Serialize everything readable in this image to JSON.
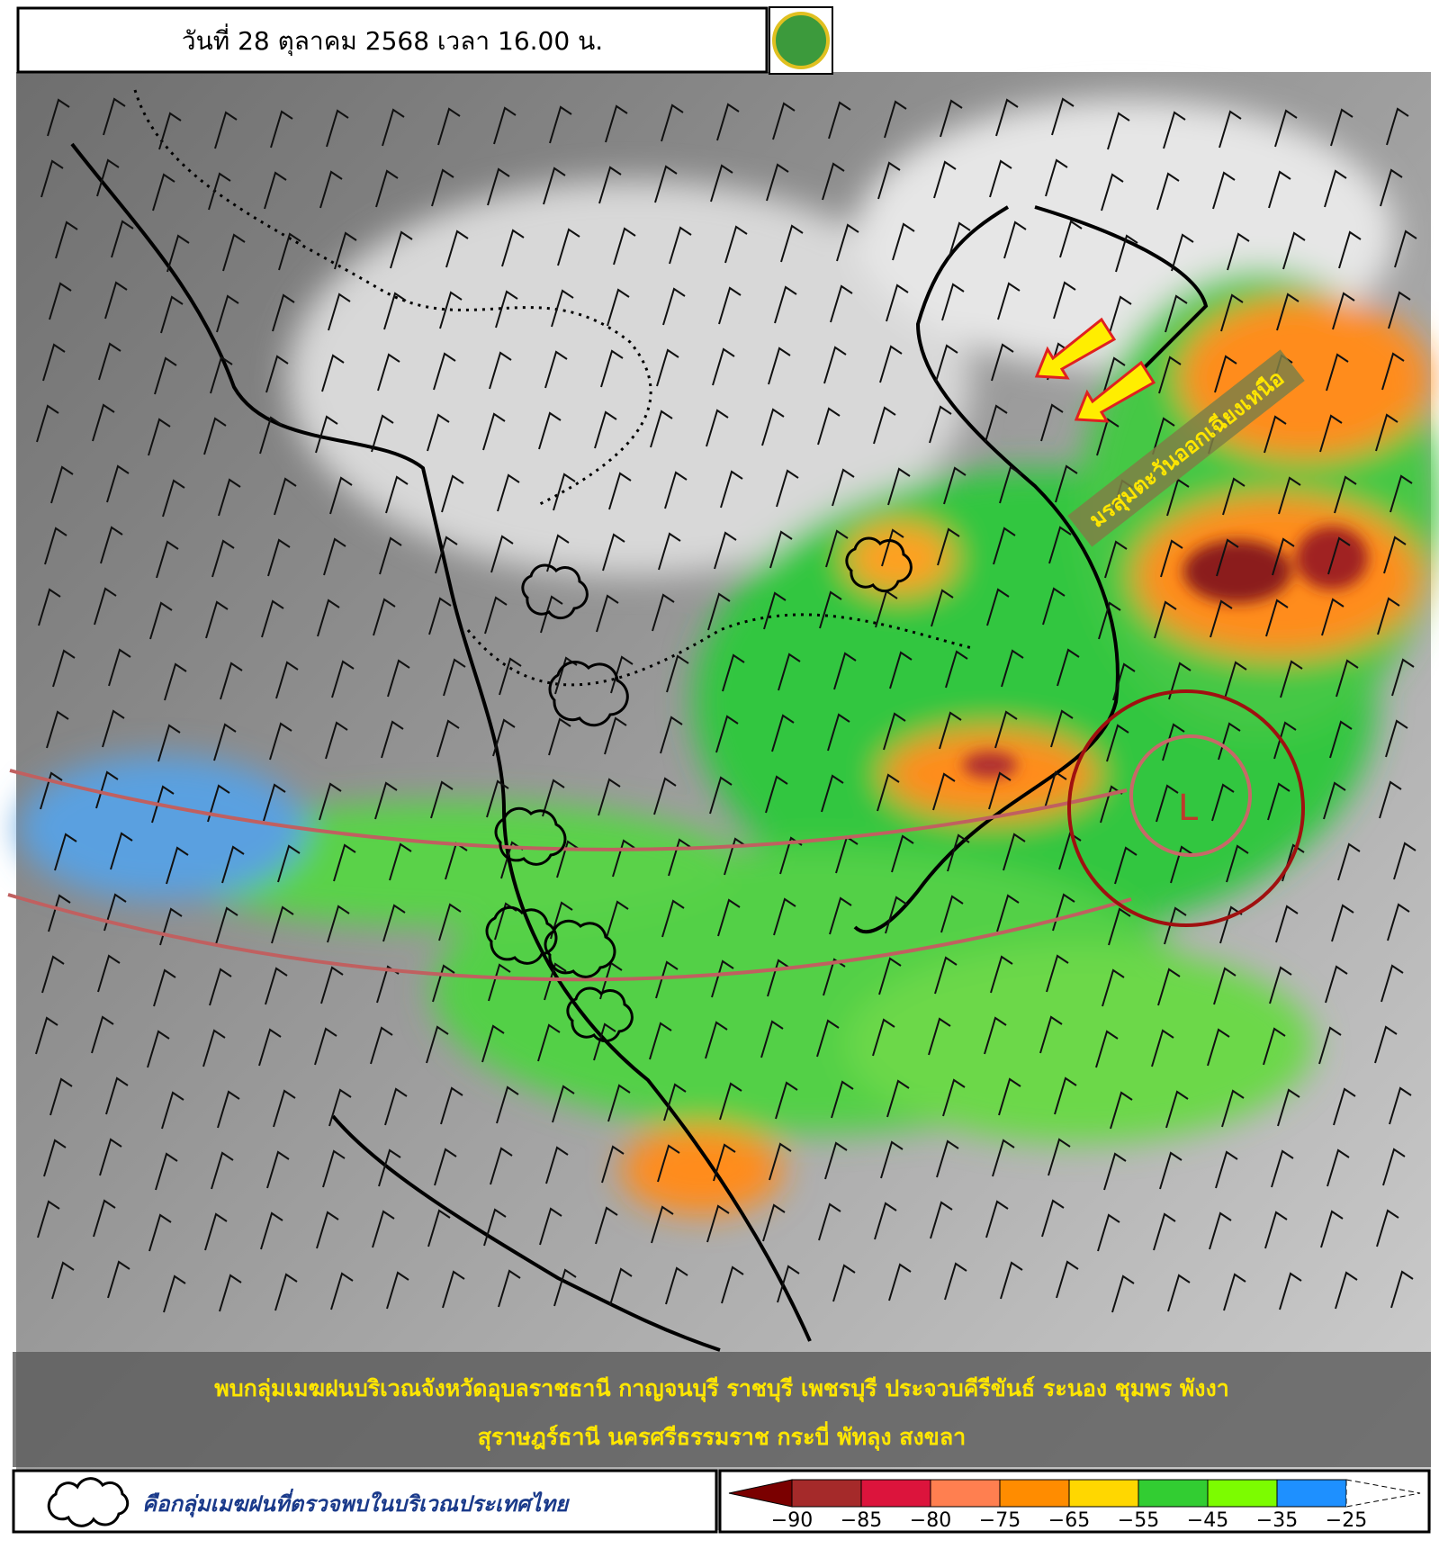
{
  "header": {
    "title": "วันที่ 28 ตุลาคม 2568 เวลา 16.00 น."
  },
  "map": {
    "monsoon_label": "มรสุมตะวันออกเฉียงเหนือ",
    "low_label": "L"
  },
  "summary": {
    "lines": [
      "พบกลุ่มเมฆฝนบริเวณจังหวัดอุบลราชธานี กาญจนบุรี ราชบุรี เพชรบุรี ประจวบคีรีขันธ์ ระนอง ชุมพร พังงา",
      "สุราษฎร์ธานี นครศรีธรรมราช กระบี่ พัทลุง สงขลา"
    ]
  },
  "legend": {
    "cloud_label": "คือกลุ่มเมฆฝนที่ตรวจพบในบริเวณประเทศไทย"
  },
  "colorbar": {
    "labels": [
      "−90",
      "−85",
      "−80",
      "−75",
      "−65",
      "−55",
      "−45",
      "−35",
      "−25"
    ]
  }
}
